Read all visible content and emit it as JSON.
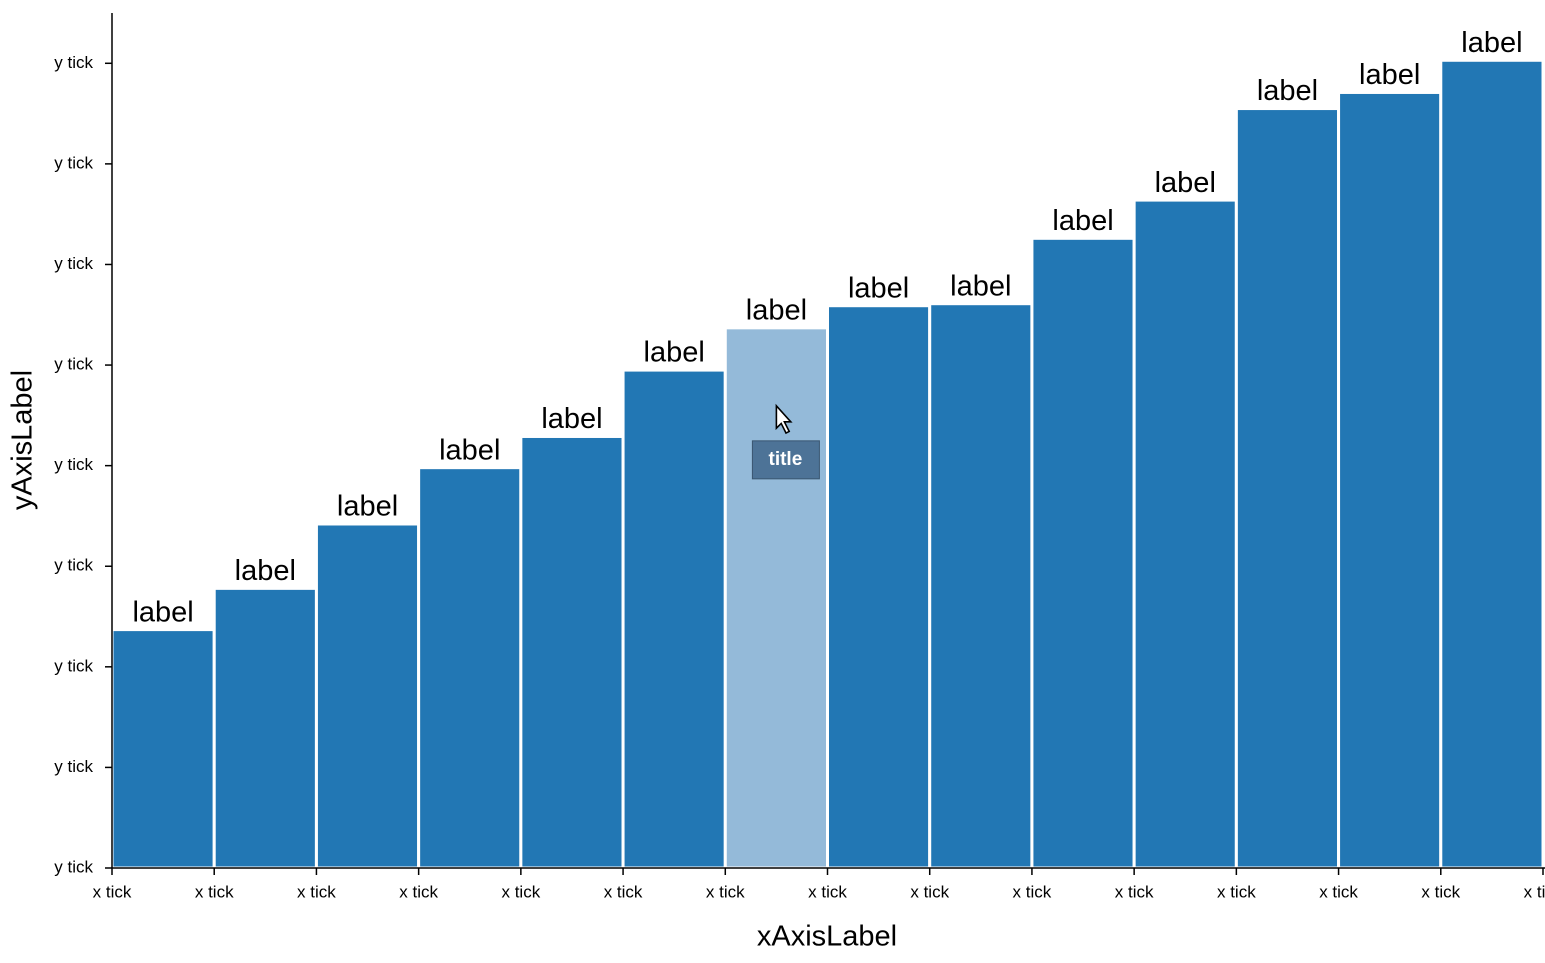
{
  "chart_data": {
    "type": "histogram",
    "x_label": "xAxisLabel",
    "y_label": "yAxisLabel",
    "bins": [
      0,
      1,
      2,
      3,
      4,
      5,
      6,
      7,
      8,
      9,
      10,
      11,
      12,
      13,
      14
    ],
    "values": [
      2.37,
      2.78,
      3.42,
      3.98,
      4.29,
      4.95,
      5.37,
      5.59,
      5.61,
      6.26,
      6.64,
      7.55,
      7.71,
      8.03
    ],
    "value_labels": [
      "label",
      "label",
      "label",
      "label",
      "label",
      "label",
      "label",
      "label",
      "label",
      "label",
      "label",
      "label",
      "label",
      "label"
    ],
    "color": "#2277b4",
    "highlight_color": "#94bad9",
    "highlight_index": 6,
    "tooltip": "title",
    "xlim": [
      0,
      14
    ],
    "xticks": [
      {
        "value": 0,
        "label": "x tick"
      },
      {
        "value": 1,
        "label": "x tick"
      },
      {
        "value": 2,
        "label": "x tick"
      },
      {
        "value": 3,
        "label": "x tick"
      },
      {
        "value": 4,
        "label": "x tick"
      },
      {
        "value": 5,
        "label": "x tick"
      },
      {
        "value": 6,
        "label": "x tick"
      },
      {
        "value": 7,
        "label": "x tick"
      },
      {
        "value": 8,
        "label": "x tick"
      },
      {
        "value": 9,
        "label": "x tick"
      },
      {
        "value": 10,
        "label": "x tick"
      },
      {
        "value": 11,
        "label": "x tick"
      },
      {
        "value": 12,
        "label": "x tick"
      },
      {
        "value": 13,
        "label": "x tick"
      },
      {
        "value": 14,
        "label": "x tick"
      }
    ],
    "ylim": [
      0,
      8.5
    ],
    "yticks": [
      {
        "value": 0,
        "label": "y tick"
      },
      {
        "value": 1,
        "label": "y tick"
      },
      {
        "value": 2,
        "label": "y tick"
      },
      {
        "value": 3,
        "label": "y tick"
      },
      {
        "value": 4,
        "label": "y tick"
      },
      {
        "value": 5,
        "label": "y tick"
      },
      {
        "value": 6,
        "label": "y tick"
      },
      {
        "value": 7,
        "label": "y tick"
      },
      {
        "value": 8,
        "label": "y tick"
      }
    ]
  }
}
